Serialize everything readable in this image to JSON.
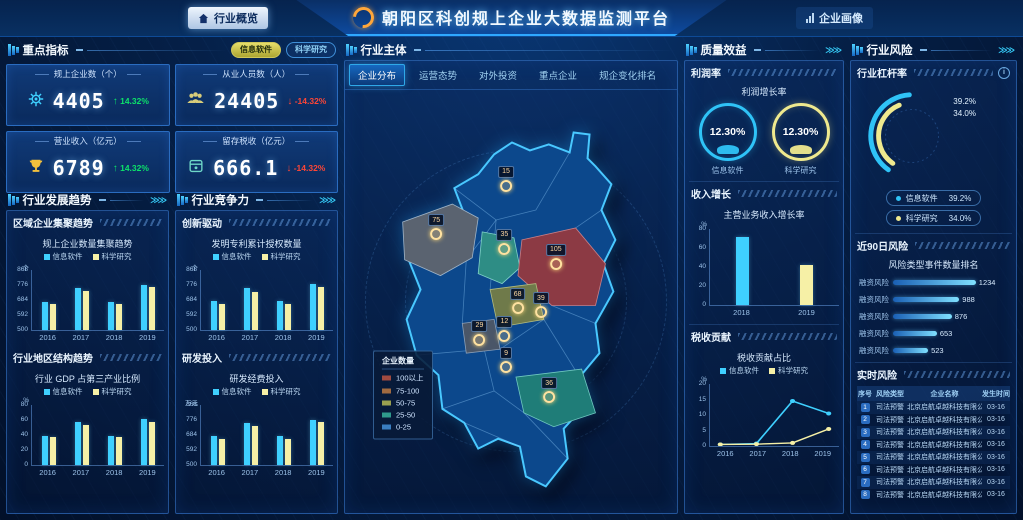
{
  "header": {
    "title": "朝阳区科创规上企业大数据监测平台",
    "left_nav": "行业概览",
    "right_nav": "企业画像"
  },
  "indicators": {
    "title": "重点指标",
    "toggles": [
      {
        "label": "信息软件",
        "active": true
      },
      {
        "label": "科学研究",
        "active": false
      }
    ],
    "cards": [
      {
        "label": "规上企业数（个）",
        "value": "4405",
        "delta": "14.32%",
        "dir": "up",
        "icon": "gear-icon"
      },
      {
        "label": "从业人员数（人）",
        "value": "24405",
        "delta": "-14.32%",
        "dir": "down",
        "icon": "people-icon"
      },
      {
        "label": "营业收入（亿元）",
        "value": "6789",
        "delta": "14.32%",
        "dir": "up",
        "icon": "trophy-icon"
      },
      {
        "label": "留存税收（亿元）",
        "value": "666.1",
        "delta": "-14.32%",
        "dir": "down",
        "icon": "safe-icon"
      }
    ]
  },
  "colors": {
    "cyan": "#3fd0ff",
    "pale_yellow": "#f6f0a6",
    "up_green": "#0ce26a",
    "down_red": "#ff4636"
  },
  "industry_trend": {
    "title": "行业发展趋势",
    "sections": [
      {
        "header": "区域企业集聚趋势",
        "chart": {
          "type": "grouped_bar",
          "title": "规上企业数量集聚趋势",
          "unit": "个",
          "legend": true,
          "yticks": [
            868,
            776,
            684,
            592,
            500
          ],
          "ymin": 500,
          "ymax": 868,
          "categories": [
            "2016",
            "2017",
            "2018",
            "2019"
          ],
          "series": [
            {
              "name": "信息软件",
              "color": "#3fd0ff",
              "values": [
                672,
                758,
                674,
                778
              ]
            },
            {
              "name": "科学研究",
              "color": "#f6f0a6",
              "values": [
                658,
                738,
                660,
                764
              ]
            }
          ]
        }
      },
      {
        "header": "行业地区结构趋势",
        "chart": {
          "type": "grouped_bar",
          "title": "行业 GDP 占第三产业比例",
          "unit": "%",
          "legend": true,
          "yticks": [
            80,
            60,
            40,
            20,
            0
          ],
          "ymin": 0,
          "ymax": 80,
          "categories": [
            "2016",
            "2017",
            "2018",
            "2019"
          ],
          "series": [
            {
              "name": "信息软件",
              "color": "#3fd0ff",
              "values": [
                39,
                58,
                39,
                62
              ]
            },
            {
              "name": "科学研究",
              "color": "#f6f0a6",
              "values": [
                37,
                54,
                37,
                58
              ]
            }
          ]
        }
      }
    ]
  },
  "competitiveness": {
    "title": "行业竞争力",
    "sections": [
      {
        "header": "创新驱动",
        "chart": {
          "type": "grouped_bar",
          "title": "发明专利累计授权数量",
          "unit": "个",
          "legend": true,
          "yticks": [
            868,
            776,
            684,
            592,
            500
          ],
          "ymin": 500,
          "ymax": 868,
          "categories": [
            "2016",
            "2017",
            "2018",
            "2019"
          ],
          "series": [
            {
              "name": "信息软件",
              "color": "#3fd0ff",
              "values": [
                676,
                756,
                678,
                780
              ]
            },
            {
              "name": "科学研究",
              "color": "#f6f0a6",
              "values": [
                660,
                736,
                662,
                766
              ]
            }
          ]
        }
      },
      {
        "header": "研发投入",
        "chart": {
          "type": "grouped_bar",
          "title": "研发经费投入",
          "unit": "万元",
          "legend": true,
          "yticks": [
            868,
            776,
            684,
            592,
            500
          ],
          "ymin": 500,
          "ymax": 868,
          "categories": [
            "2016",
            "2017",
            "2018",
            "2019"
          ],
          "series": [
            {
              "name": "信息软件",
              "color": "#3fd0ff",
              "values": [
                675,
                757,
                676,
                779
              ]
            },
            {
              "name": "科学研究",
              "color": "#f6f0a6",
              "values": [
                659,
                737,
                661,
                765
              ]
            }
          ]
        }
      }
    ]
  },
  "main_map": {
    "title": "行业主体",
    "tabs": [
      "企业分布",
      "运营态势",
      "对外投资",
      "重点企业",
      "规企变化排名"
    ],
    "active_tab": "企业分布",
    "legend": {
      "title": "企业数量",
      "items": [
        {
          "label": "100以上",
          "color": "#a04a40"
        },
        {
          "label": "75-100",
          "color": "#a06a40"
        },
        {
          "label": "50-75",
          "color": "#9aa050"
        },
        {
          "label": "25-50",
          "color": "#2f9a8c"
        },
        {
          "label": "0-25",
          "color": "#3a7ec0"
        }
      ]
    },
    "markers": [
      {
        "value": "15",
        "x": 48.5,
        "y": 24
      },
      {
        "value": "75",
        "x": 27.5,
        "y": 35.5
      },
      {
        "value": "35",
        "x": 48,
        "y": 39
      },
      {
        "value": "105",
        "x": 63.5,
        "y": 42.5
      },
      {
        "value": "68",
        "x": 52,
        "y": 53
      },
      {
        "value": "39",
        "x": 59,
        "y": 54
      },
      {
        "value": "29",
        "x": 40.5,
        "y": 60.5
      },
      {
        "value": "12",
        "x": 48,
        "y": 59.5
      },
      {
        "value": "9",
        "x": 48.5,
        "y": 67
      },
      {
        "value": "36",
        "x": 61.5,
        "y": 74
      }
    ]
  },
  "quality": {
    "title": "质量效益",
    "profit": {
      "header": "利润率",
      "chart_title": "利润增长率",
      "gauges": [
        {
          "value": "12.30%",
          "label": "信息软件",
          "color": "#2fc3f7"
        },
        {
          "value": "12.30%",
          "label": "科学研究",
          "color": "#efe98e"
        }
      ]
    },
    "income": {
      "header": "收入增长",
      "chart": {
        "type": "bar",
        "title": "主营业务收入增长率",
        "unit": "%",
        "legend": false,
        "h": 76,
        "yticks": [
          80,
          60,
          40,
          20,
          0
        ],
        "ymin": 0,
        "ymax": 80,
        "categories": [
          "2018",
          "2019"
        ],
        "values": [
          72,
          42
        ],
        "colors": [
          "#3fd0ff",
          "#f6f0a6"
        ]
      }
    },
    "tax": {
      "header": "税收贡献",
      "chart": {
        "type": "line",
        "title": "税收贡献占比",
        "unit": "%",
        "legend": true,
        "h": 62,
        "yticks": [
          20,
          15,
          10,
          5,
          0
        ],
        "ymin": 0,
        "ymax": 20,
        "categories": [
          "2016",
          "2017",
          "2018",
          "2019"
        ],
        "series": [
          {
            "name": "信息软件",
            "color": "#3fd0ff",
            "values": [
              0.5,
              0.8,
              14.5,
              10.5
            ]
          },
          {
            "name": "科学研究",
            "color": "#f6f0a6",
            "values": [
              0.5,
              0.6,
              1,
              5.5
            ]
          }
        ]
      }
    }
  },
  "risk": {
    "title": "行业风险",
    "leverage": {
      "header": "行业杠杆率",
      "series": [
        {
          "label": "信息软件",
          "value": "39.2%",
          "color": "#2fc3f7"
        },
        {
          "label": "科学研究",
          "value": "34.0%",
          "color": "#efe98e"
        }
      ]
    },
    "recent": {
      "header": "近90日风险",
      "chart_title": "风险类型事件数量排名",
      "bars": [
        {
          "label": "融资风险",
          "value": 1234
        },
        {
          "label": "融资风险",
          "value": 988
        },
        {
          "label": "融资风险",
          "value": 876
        },
        {
          "label": "融资风险",
          "value": 653
        },
        {
          "label": "融资风险",
          "value": 523
        }
      ]
    },
    "realtime": {
      "header": "实时风险",
      "columns": [
        "序号",
        "风险类型",
        "企业名称",
        "发生时间"
      ],
      "rows": [
        {
          "seq": "1",
          "type": "司法预警",
          "company": "北京启航卓越科技有限公司",
          "time": "03-16"
        },
        {
          "seq": "2",
          "type": "司法预警",
          "company": "北京启航卓越科技有限公司",
          "time": "03-16"
        },
        {
          "seq": "3",
          "type": "司法预警",
          "company": "北京启航卓越科技有限公司",
          "time": "03-16"
        },
        {
          "seq": "4",
          "type": "司法预警",
          "company": "北京启航卓越科技有限公司",
          "time": "03-16"
        },
        {
          "seq": "5",
          "type": "司法预警",
          "company": "北京启航卓越科技有限公司",
          "time": "03-16"
        },
        {
          "seq": "6",
          "type": "司法预警",
          "company": "北京启航卓越科技有限公司",
          "time": "03-16"
        },
        {
          "seq": "7",
          "type": "司法预警",
          "company": "北京启航卓越科技有限公司",
          "time": "03-16"
        },
        {
          "seq": "8",
          "type": "司法预警",
          "company": "北京启航卓越科技有限公司",
          "time": "03-16"
        }
      ]
    }
  }
}
